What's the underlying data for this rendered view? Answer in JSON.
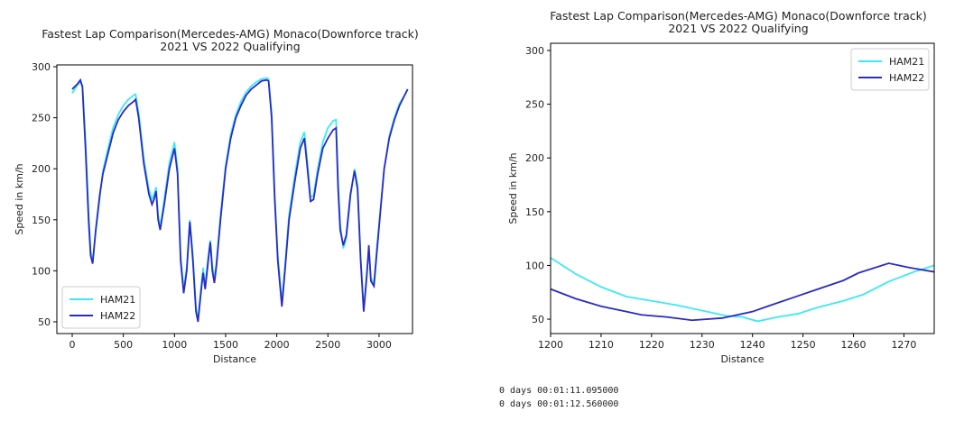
{
  "chart_data": [
    {
      "type": "line",
      "title": "Fastest Lap Comparison(Mercedes-AMG) Monaco(Downforce track)",
      "subtitle": "2021 VS 2022 Qualifying",
      "xlabel": "Distance",
      "ylabel": "Speed in km/h",
      "xlim": [
        -150,
        3327
      ],
      "ylim": [
        38.5,
        301.8
      ],
      "xticks": [
        0,
        500,
        1000,
        1500,
        2000,
        2500,
        3000
      ],
      "yticks": [
        50,
        100,
        150,
        200,
        250,
        300
      ],
      "legend": "lower left",
      "series": [
        {
          "name": "HAM21",
          "color": "#3ee8f2",
          "x": [
            0,
            50,
            80,
            100,
            130,
            160,
            180,
            200,
            230,
            270,
            300,
            350,
            400,
            450,
            500,
            550,
            600,
            620,
            650,
            700,
            750,
            780,
            800,
            820,
            840,
            860,
            900,
            950,
            1000,
            1030,
            1060,
            1090,
            1120,
            1150,
            1180,
            1210,
            1230,
            1260,
            1280,
            1300,
            1330,
            1350,
            1370,
            1390,
            1410,
            1450,
            1500,
            1550,
            1600,
            1650,
            1700,
            1750,
            1800,
            1850,
            1900,
            1920,
            1950,
            1980,
            2010,
            2050,
            2080,
            2120,
            2180,
            2230,
            2270,
            2300,
            2330,
            2360,
            2400,
            2450,
            2500,
            2550,
            2580,
            2600,
            2620,
            2650,
            2680,
            2720,
            2760,
            2790,
            2820,
            2850,
            2880,
            2900,
            2920,
            2950,
            2980,
            3050,
            3100,
            3150,
            3200,
            3250,
            3280
          ],
          "values": [
            274,
            282,
            285,
            282,
            228,
            158,
            120,
            110,
            138,
            172,
            198,
            220,
            240,
            253,
            262,
            268,
            272,
            273,
            255,
            210,
            180,
            170,
            175,
            182,
            155,
            143,
            170,
            206,
            226,
            200,
            115,
            82,
            104,
            150,
            115,
            64,
            53,
            84,
            103,
            86,
            114,
            130,
            105,
            92,
            108,
            155,
            203,
            234,
            253,
            266,
            275,
            281,
            285,
            288,
            289,
            288,
            255,
            175,
            115,
            70,
            104,
            155,
            196,
            226,
            236,
            206,
            172,
            174,
            200,
            226,
            240,
            247,
            248,
            188,
            146,
            122,
            132,
            172,
            200,
            184,
            114,
            62,
            98,
            120,
            93,
            88,
            124,
            200,
            232,
            250,
            264,
            272,
            278
          ]
        },
        {
          "name": "HAM22",
          "color": "#2a2ac8",
          "x": [
            0,
            50,
            80,
            100,
            130,
            160,
            180,
            200,
            230,
            270,
            300,
            350,
            400,
            450,
            500,
            550,
            600,
            620,
            650,
            700,
            750,
            780,
            800,
            820,
            840,
            860,
            900,
            950,
            1000,
            1030,
            1060,
            1090,
            1120,
            1150,
            1180,
            1210,
            1230,
            1260,
            1280,
            1300,
            1330,
            1350,
            1370,
            1390,
            1410,
            1450,
            1500,
            1550,
            1600,
            1650,
            1700,
            1750,
            1800,
            1850,
            1900,
            1920,
            1950,
            1980,
            2010,
            2050,
            2080,
            2120,
            2180,
            2230,
            2270,
            2300,
            2330,
            2360,
            2400,
            2450,
            2500,
            2550,
            2580,
            2600,
            2620,
            2650,
            2680,
            2720,
            2760,
            2790,
            2820,
            2850,
            2880,
            2900,
            2920,
            2950,
            2980,
            3050,
            3100,
            3150,
            3200,
            3250,
            3280
          ],
          "values": [
            278,
            283,
            287,
            280,
            220,
            150,
            115,
            107,
            140,
            175,
            195,
            215,
            235,
            248,
            256,
            262,
            266,
            268,
            250,
            205,
            175,
            165,
            170,
            178,
            150,
            140,
            165,
            200,
            220,
            195,
            110,
            78,
            100,
            148,
            110,
            60,
            50,
            80,
            98,
            82,
            110,
            128,
            100,
            88,
            105,
            150,
            200,
            230,
            250,
            262,
            272,
            278,
            282,
            286,
            287,
            286,
            250,
            170,
            110,
            65,
            100,
            150,
            190,
            220,
            230,
            200,
            168,
            170,
            195,
            220,
            230,
            238,
            240,
            180,
            140,
            125,
            135,
            175,
            198,
            180,
            110,
            60,
            95,
            125,
            90,
            85,
            120,
            200,
            230,
            248,
            262,
            272,
            278
          ]
        }
      ]
    },
    {
      "type": "line",
      "title": "Fastest Lap Comparison(Mercedes-AMG) Monaco(Downforce track)",
      "subtitle": "2021 VS 2022 Qualifying",
      "xlabel": "Distance",
      "ylabel": "Speed in km/h",
      "xlim": [
        1200,
        1276
      ],
      "ylim": [
        36.6,
        306.7
      ],
      "xticks": [
        1200,
        1210,
        1220,
        1230,
        1240,
        1250,
        1260,
        1270
      ],
      "yticks": [
        50,
        100,
        150,
        200,
        250,
        300
      ],
      "legend": "upper right",
      "series": [
        {
          "name": "HAM21",
          "color": "#3ee8f2",
          "x": [
            1200,
            1203,
            1205,
            1210,
            1215,
            1220,
            1225,
            1230,
            1235,
            1238,
            1241,
            1245,
            1249,
            1253,
            1258,
            1262,
            1267,
            1272,
            1276
          ],
          "values": [
            107,
            98,
            92,
            80,
            71,
            67,
            63,
            58,
            53,
            52,
            48,
            52,
            55,
            61,
            67,
            73,
            85,
            94,
            100
          ]
        },
        {
          "name": "HAM22",
          "color": "#2a2ac8",
          "x": [
            1200,
            1205,
            1210,
            1215,
            1218,
            1223,
            1228,
            1234,
            1240,
            1243,
            1248,
            1253,
            1258,
            1261,
            1267,
            1271,
            1276
          ],
          "values": [
            78,
            69,
            62,
            57,
            54,
            52,
            49,
            51,
            57,
            62,
            70,
            78,
            86,
            93,
            102,
            98,
            94
          ]
        }
      ]
    }
  ],
  "outputs": [
    "0 days 00:01:11.095000",
    "0 days 00:01:12.560000"
  ]
}
